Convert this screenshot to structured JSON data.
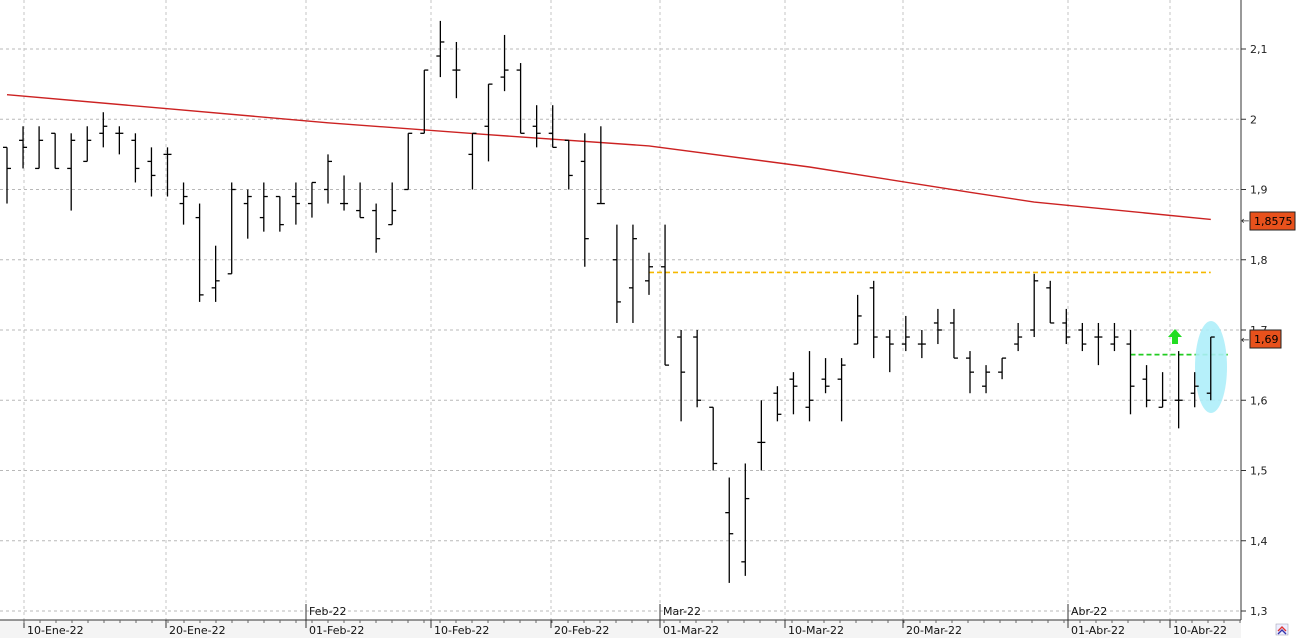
{
  "chart_data": {
    "type": "ohlc",
    "title": "",
    "xlabel": "",
    "ylabel": "",
    "ylim": [
      1.3,
      2.17
    ],
    "grid": true,
    "y_ticks": [
      "1,3",
      "1,4",
      "1,5",
      "1,6",
      "1,7",
      "1,8",
      "1,9",
      "2",
      "2,1"
    ],
    "x_ticks": [
      "10-Ene-22",
      "20-Ene-22",
      "01-Feb-22",
      "10-Feb-22",
      "20-Feb-22",
      "01-Mar-22",
      "10-Mar-22",
      "20-Mar-22",
      "01-Abr-22",
      "10-Abr-22"
    ],
    "month_labels": [
      "Feb-22",
      "Mar-22",
      "Abr-22"
    ],
    "last_price_label": "1,69",
    "ma_value_label": "1,8575",
    "colors": {
      "bars": "#000000",
      "moving_average": "#cc2222",
      "resistance": "#f5b800",
      "support": "#22cc22",
      "arrow": "#22dd22",
      "highlight": "#aeeefa",
      "price_badge": "#e8511c"
    },
    "series": [
      {
        "kind": "ohlc",
        "values": [
          [
            1.96,
            1.96,
            1.88,
            1.93
          ],
          [
            1.97,
            1.99,
            1.93,
            1.96
          ],
          [
            1.93,
            1.99,
            1.93,
            1.97
          ],
          [
            1.98,
            1.98,
            1.93,
            1.93
          ],
          [
            1.93,
            1.98,
            1.87,
            1.97
          ],
          [
            1.94,
            1.99,
            1.94,
            1.97
          ],
          [
            1.98,
            2.01,
            1.96,
            1.99
          ],
          [
            1.98,
            1.99,
            1.95,
            1.98
          ],
          [
            1.97,
            1.98,
            1.91,
            1.93
          ],
          [
            1.94,
            1.96,
            1.89,
            1.92
          ],
          [
            1.95,
            1.96,
            1.89,
            1.95
          ],
          [
            1.88,
            1.91,
            1.85,
            1.89
          ],
          [
            1.86,
            1.88,
            1.74,
            1.75
          ],
          [
            1.76,
            1.82,
            1.74,
            1.77
          ],
          [
            1.78,
            1.91,
            1.78,
            1.9
          ],
          [
            1.88,
            1.9,
            1.83,
            1.89
          ],
          [
            1.86,
            1.91,
            1.84,
            1.89
          ],
          [
            1.89,
            1.89,
            1.84,
            1.85
          ],
          [
            1.89,
            1.91,
            1.85,
            1.88
          ],
          [
            1.88,
            1.91,
            1.86,
            1.91
          ],
          [
            1.9,
            1.95,
            1.88,
            1.94
          ],
          [
            1.88,
            1.92,
            1.87,
            1.88
          ],
          [
            1.87,
            1.91,
            1.86,
            1.86
          ],
          [
            1.87,
            1.88,
            1.81,
            1.83
          ],
          [
            1.85,
            1.91,
            1.85,
            1.87
          ],
          [
            1.9,
            1.98,
            1.9,
            1.98
          ],
          [
            1.98,
            2.07,
            1.98,
            2.07
          ],
          [
            2.09,
            2.14,
            2.06,
            2.11
          ],
          [
            2.07,
            2.11,
            2.03,
            2.07
          ],
          [
            1.95,
            1.98,
            1.9,
            1.98
          ],
          [
            1.99,
            2.05,
            1.94,
            2.05
          ],
          [
            2.06,
            2.12,
            2.04,
            2.07
          ],
          [
            2.07,
            2.08,
            1.98,
            1.98
          ],
          [
            1.99,
            2.02,
            1.96,
            1.98
          ],
          [
            1.98,
            2.02,
            1.96,
            1.96
          ],
          [
            1.97,
            1.97,
            1.9,
            1.92
          ],
          [
            1.94,
            1.98,
            1.79,
            1.83
          ],
          [
            1.88,
            1.99,
            1.88,
            1.88
          ],
          [
            1.8,
            1.85,
            1.71,
            1.74
          ],
          [
            1.76,
            1.85,
            1.71,
            1.83
          ],
          [
            1.77,
            1.81,
            1.75,
            1.79
          ],
          [
            1.79,
            1.85,
            1.65,
            1.65
          ],
          [
            1.69,
            1.7,
            1.57,
            1.64
          ],
          [
            1.69,
            1.7,
            1.59,
            1.6
          ],
          [
            1.59,
            1.59,
            1.5,
            1.51
          ],
          [
            1.44,
            1.49,
            1.34,
            1.41
          ],
          [
            1.37,
            1.51,
            1.35,
            1.46
          ],
          [
            1.54,
            1.6,
            1.5,
            1.54
          ],
          [
            1.61,
            1.62,
            1.57,
            1.58
          ],
          [
            1.63,
            1.64,
            1.58,
            1.62
          ],
          [
            1.59,
            1.67,
            1.57,
            1.6
          ],
          [
            1.63,
            1.66,
            1.61,
            1.62
          ],
          [
            1.63,
            1.66,
            1.57,
            1.65
          ],
          [
            1.68,
            1.75,
            1.68,
            1.72
          ],
          [
            1.76,
            1.77,
            1.66,
            1.69
          ],
          [
            1.69,
            1.7,
            1.64,
            1.68
          ],
          [
            1.68,
            1.72,
            1.67,
            1.69
          ],
          [
            1.68,
            1.7,
            1.66,
            1.68
          ],
          [
            1.71,
            1.73,
            1.68,
            1.7
          ],
          [
            1.71,
            1.73,
            1.66,
            1.66
          ],
          [
            1.66,
            1.67,
            1.61,
            1.64
          ],
          [
            1.62,
            1.65,
            1.61,
            1.64
          ],
          [
            1.64,
            1.66,
            1.63,
            1.66
          ],
          [
            1.68,
            1.71,
            1.67,
            1.69
          ],
          [
            1.7,
            1.78,
            1.69,
            1.77
          ],
          [
            1.76,
            1.77,
            1.71,
            1.71
          ],
          [
            1.71,
            1.73,
            1.68,
            1.69
          ],
          [
            1.7,
            1.71,
            1.67,
            1.68
          ],
          [
            1.69,
            1.71,
            1.65,
            1.69
          ],
          [
            1.68,
            1.71,
            1.67,
            1.69
          ],
          [
            1.68,
            1.7,
            1.58,
            1.62
          ],
          [
            1.63,
            1.65,
            1.59,
            1.6
          ],
          [
            1.59,
            1.64,
            1.59,
            1.6
          ],
          [
            1.6,
            1.67,
            1.56,
            1.6
          ],
          [
            1.61,
            1.64,
            1.59,
            1.62
          ],
          [
            1.61,
            1.69,
            1.6,
            1.69
          ]
        ]
      },
      {
        "kind": "line",
        "x": [
          0,
          10,
          20,
          30,
          40,
          50,
          60,
          64,
          75
        ],
        "values": [
          2.035,
          2.015,
          1.995,
          1.978,
          1.962,
          1.932,
          1.896,
          1.882,
          1.8575
        ]
      }
    ],
    "bar_dates_first_x_index": [
      0,
      1,
      2,
      3,
      4,
      5,
      6,
      7,
      8,
      9
    ],
    "resistance": 1.782,
    "support": 1.665
  }
}
